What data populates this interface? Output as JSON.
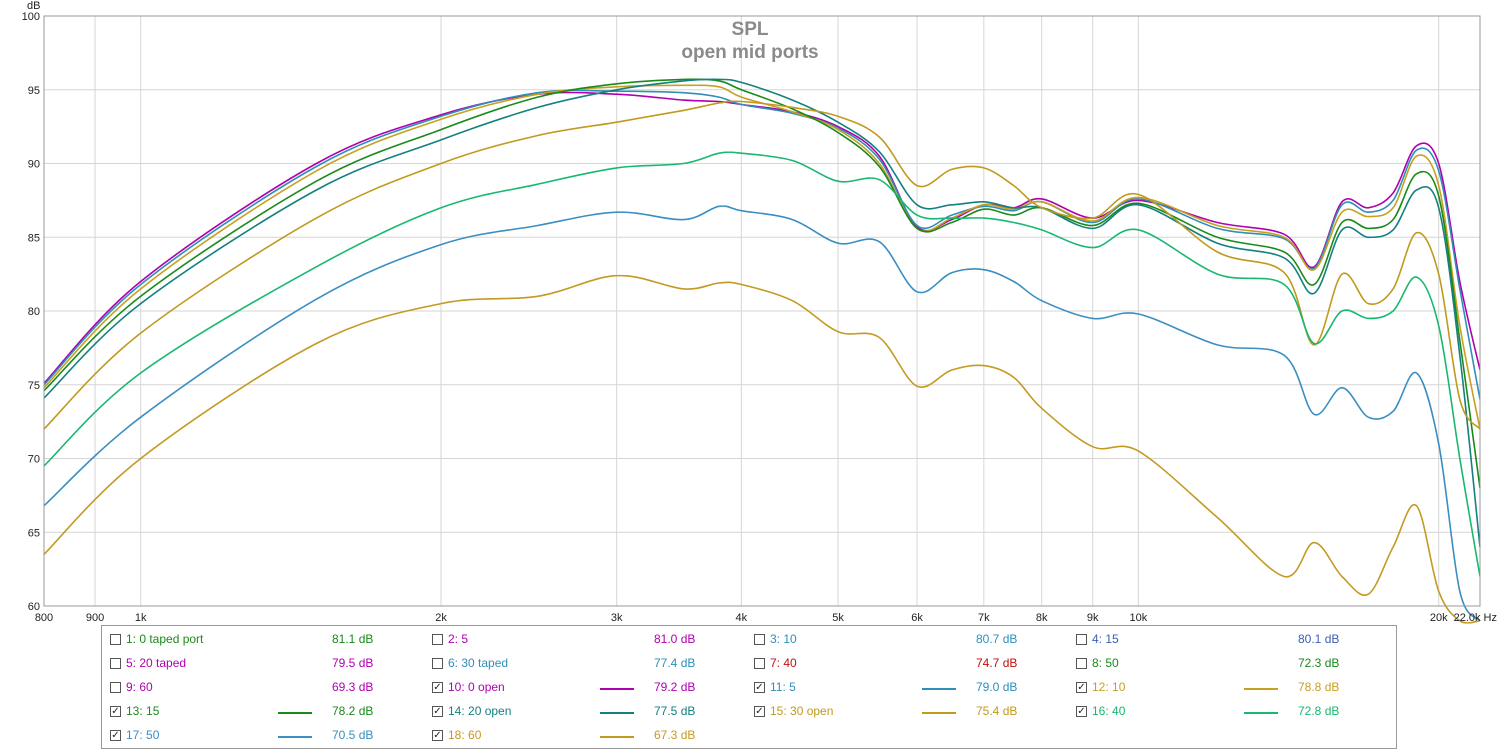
{
  "chart_data": {
    "type": "line",
    "title": "SPL",
    "subtitle": "open mid ports",
    "ylabel": "dB",
    "xunit": "Hz",
    "xscale": "log",
    "xlim": [
      800,
      22000
    ],
    "ylim": [
      60,
      100
    ],
    "y_ticks": [
      60,
      65,
      70,
      75,
      80,
      85,
      90,
      95,
      100
    ],
    "x_ticks": [
      {
        "v": 800,
        "label": "800"
      },
      {
        "v": 900,
        "label": "900"
      },
      {
        "v": 1000,
        "label": "1k"
      },
      {
        "v": 2000,
        "label": "2k"
      },
      {
        "v": 3000,
        "label": "3k"
      },
      {
        "v": 4000,
        "label": "4k"
      },
      {
        "v": 5000,
        "label": "5k"
      },
      {
        "v": 6000,
        "label": "6k"
      },
      {
        "v": 7000,
        "label": "7k"
      },
      {
        "v": 8000,
        "label": "8k"
      },
      {
        "v": 9000,
        "label": "9k"
      },
      {
        "v": 10000,
        "label": "10k"
      },
      {
        "v": 20000,
        "label": "20k"
      },
      {
        "v": 22000,
        "label": "22.0k Hz"
      }
    ],
    "grid": true,
    "legend_placement": "bottom",
    "x": [
      800,
      1000,
      1500,
      2000,
      2500,
      3000,
      3500,
      3800,
      4000,
      4500,
      5000,
      5500,
      6000,
      6500,
      7000,
      7500,
      8000,
      9000,
      10000,
      12000,
      14000,
      15000,
      16000,
      17000,
      18000,
      19000,
      20000,
      21000,
      22000
    ],
    "series": [
      {
        "name": "10: 0 open",
        "checked": true,
        "color": "#b000b0",
        "level": "79.2 dB",
        "values": [
          75.1,
          82.0,
          90.0,
          93.3,
          94.7,
          94.7,
          94.3,
          94.2,
          94.0,
          93.5,
          92.5,
          90.5,
          85.7,
          86.2,
          87.2,
          87.0,
          87.6,
          86.3,
          87.5,
          86.0,
          85.2,
          83.0,
          87.4,
          87.0,
          88.0,
          91.2,
          90.0,
          82.0,
          76.0
        ]
      },
      {
        "name": "11: 5",
        "checked": true,
        "color": "#2f8fb8",
        "level": "79.0 dB",
        "values": [
          75.0,
          81.8,
          89.8,
          93.2,
          94.8,
          94.9,
          94.8,
          94.5,
          94.0,
          93.4,
          92.4,
          90.3,
          85.8,
          86.5,
          87.1,
          86.8,
          87.4,
          86.0,
          87.6,
          85.6,
          84.9,
          82.9,
          87.2,
          86.7,
          87.5,
          90.9,
          89.5,
          81.5,
          74.0
        ]
      },
      {
        "name": "12: 10",
        "checked": true,
        "color": "#c8a020",
        "level": "78.8 dB",
        "values": [
          74.8,
          81.5,
          89.5,
          93.0,
          94.7,
          95.2,
          95.3,
          95.2,
          94.5,
          93.5,
          92.3,
          90.0,
          85.6,
          86.3,
          87.2,
          86.9,
          87.4,
          86.1,
          87.7,
          85.8,
          85.0,
          82.8,
          86.7,
          86.4,
          87.0,
          90.5,
          88.5,
          79.0,
          72.0
        ]
      },
      {
        "name": "13: 15",
        "checked": true,
        "color": "#1a8a1a",
        "level": "78.2 dB",
        "values": [
          74.6,
          81.0,
          88.8,
          92.3,
          94.5,
          95.4,
          95.7,
          95.6,
          95.0,
          93.7,
          92.1,
          89.8,
          85.6,
          86.0,
          86.9,
          86.5,
          87.0,
          85.8,
          87.3,
          85.0,
          84.0,
          81.8,
          86.0,
          85.6,
          86.2,
          89.3,
          87.8,
          78.0,
          68.0
        ]
      },
      {
        "name": "14: 20 open",
        "checked": true,
        "color": "#148080",
        "level": "77.5 dB",
        "values": [
          74.1,
          80.5,
          88.2,
          91.6,
          93.8,
          95.0,
          95.6,
          95.7,
          95.5,
          94.3,
          92.8,
          90.8,
          87.2,
          87.2,
          87.4,
          87.0,
          87.0,
          85.6,
          87.2,
          84.6,
          83.6,
          81.2,
          85.5,
          85.0,
          85.5,
          88.2,
          87.0,
          77.0,
          64.0
        ]
      },
      {
        "name": "15: 30 open",
        "checked": true,
        "color": "#c09a1c",
        "level": "75.4 dB",
        "values": [
          72.0,
          78.5,
          86.3,
          90.0,
          91.9,
          92.8,
          93.6,
          94.1,
          94.2,
          93.8,
          93.2,
          91.8,
          88.5,
          89.6,
          89.7,
          88.5,
          87.0,
          86.3,
          87.9,
          84.0,
          82.6,
          77.7,
          82.5,
          80.5,
          81.5,
          85.3,
          82.5,
          74.0,
          72.0
        ]
      },
      {
        "name": "16: 40",
        "checked": true,
        "color": "#18b870",
        "level": "72.8 dB",
        "values": [
          69.5,
          75.8,
          83.0,
          87.0,
          88.6,
          89.7,
          90.0,
          90.7,
          90.7,
          90.2,
          88.8,
          88.9,
          86.5,
          86.3,
          86.3,
          86.0,
          85.5,
          84.3,
          85.5,
          82.5,
          81.8,
          77.8,
          80.0,
          79.5,
          80.0,
          82.3,
          79.0,
          70.0,
          62.0
        ]
      },
      {
        "name": "17: 50",
        "checked": true,
        "color": "#3a8ec2",
        "level": "70.5 dB",
        "values": [
          66.8,
          72.8,
          80.8,
          84.5,
          85.8,
          86.7,
          86.2,
          87.1,
          86.8,
          86.2,
          84.6,
          84.7,
          81.3,
          82.6,
          82.8,
          82.0,
          80.7,
          79.5,
          79.8,
          77.7,
          77.0,
          73.0,
          74.8,
          72.8,
          73.2,
          75.8,
          71.0,
          61.0,
          58.0
        ]
      },
      {
        "name": "18: 60",
        "checked": true,
        "color": "#c49a22",
        "level": "67.3 dB",
        "values": [
          63.5,
          70.0,
          77.8,
          80.5,
          81.0,
          82.4,
          81.5,
          81.9,
          81.8,
          80.7,
          78.6,
          78.2,
          74.9,
          76.0,
          76.3,
          75.5,
          73.4,
          70.8,
          70.5,
          66.0,
          62.0,
          64.3,
          62.0,
          60.8,
          64.0,
          66.8,
          61.0,
          58.0,
          58.0
        ]
      }
    ]
  },
  "legend": [
    {
      "label": "1: 0 taped port",
      "checked": false,
      "color": "#1a8a1a",
      "value": "81.1 dB"
    },
    {
      "label": "2: 5",
      "checked": false,
      "color": "#b000b0",
      "value": "81.0 dB"
    },
    {
      "label": "3: 10",
      "checked": false,
      "color": "#2f8fb8",
      "value": "80.7 dB"
    },
    {
      "label": "4: 15",
      "checked": false,
      "color": "#3a5fb0",
      "value": "80.1 dB"
    },
    {
      "label": "5: 20 taped",
      "checked": false,
      "color": "#b000b0",
      "value": "79.5 dB"
    },
    {
      "label": "6: 30 taped",
      "checked": false,
      "color": "#2f8fb8",
      "value": "77.4 dB"
    },
    {
      "label": "7: 40",
      "checked": false,
      "color": "#c01010",
      "value": "74.7 dB"
    },
    {
      "label": "8: 50",
      "checked": false,
      "color": "#1a8a1a",
      "value": "72.3 dB"
    },
    {
      "label": "9: 60",
      "checked": false,
      "color": "#b000b0",
      "value": "69.3 dB"
    },
    {
      "label": "10: 0 open",
      "checked": true,
      "color": "#b000b0",
      "value": "79.2 dB"
    },
    {
      "label": "11: 5",
      "checked": true,
      "color": "#2f8fb8",
      "value": "79.0 dB"
    },
    {
      "label": "12: 10",
      "checked": true,
      "color": "#c8a020",
      "value": "78.8 dB"
    },
    {
      "label": "13: 15",
      "checked": true,
      "color": "#1a8a1a",
      "value": "78.2 dB"
    },
    {
      "label": "14: 20 open",
      "checked": true,
      "color": "#148080",
      "value": "77.5 dB"
    },
    {
      "label": "15: 30 open",
      "checked": true,
      "color": "#c09a1c",
      "value": "75.4 dB"
    },
    {
      "label": "16: 40",
      "checked": true,
      "color": "#18b870",
      "value": "72.8 dB"
    },
    {
      "label": "17: 50",
      "checked": true,
      "color": "#3a8ec2",
      "value": "70.5 dB"
    },
    {
      "label": "18: 60",
      "checked": true,
      "color": "#c49a22",
      "value": "67.3 dB"
    }
  ]
}
